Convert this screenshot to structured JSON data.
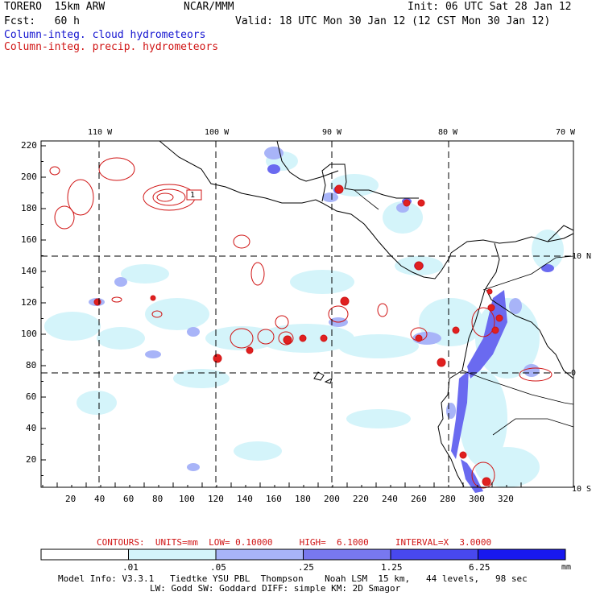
{
  "header": {
    "model": "TORERO  15km ARW",
    "org": "NCAR/MMM",
    "init": "Init: 06 UTC Sat 28 Jan 12",
    "fcst": "Fcst:   60 h",
    "valid": "Valid: 18 UTC Mon 30 Jan 12 (12 CST Mon 30 Jan 12)",
    "field_blue": "Column-integ. cloud hydrometeors",
    "field_red": "Column-integ. precip. hydrometeors"
  },
  "map": {
    "lon_labels": [
      "110 W",
      "100 W",
      "90 W",
      "80 W",
      "70 W"
    ],
    "lat_labels": [
      "10 N",
      "0",
      "10 S"
    ],
    "y_ticks": [
      "220",
      "200",
      "180",
      "160",
      "140",
      "120",
      "100",
      "80",
      "60",
      "40",
      "20"
    ],
    "x_ticks": [
      "20",
      "40",
      "60",
      "80",
      "100",
      "120",
      "140",
      "160",
      "180",
      "200",
      "220",
      "240",
      "260",
      "280",
      "300",
      "320"
    ],
    "contour_label": "1"
  },
  "contours_info": "CONTOURS:  UNITS=mm  LOW= 0.10000     HIGH=  6.1000     INTERVAL=X  3.0000",
  "colorbar": {
    "labels": [
      ".01",
      ".05",
      ".25",
      "1.25",
      "6.25"
    ],
    "unit": "mm",
    "colors": [
      "#ffffff",
      "#d4f4fa",
      "#a8b4f8",
      "#7878f0",
      "#4848ee",
      "#1818ee"
    ]
  },
  "footer": {
    "line1": "Model Info: V3.3.1   Tiedtke YSU PBL  Thompson    Noah LSM  15 km,   44 levels,   98 sec",
    "line2": "LW: Godd SW: Goddard DIFF: simple KM: 2D Smagor"
  }
}
